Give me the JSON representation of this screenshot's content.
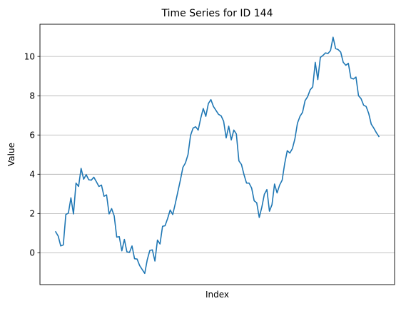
{
  "chart_data": {
    "type": "line",
    "title": "Time Series for ID 144",
    "xlabel": "Index",
    "ylabel": "Value",
    "x_ticks_shown": false,
    "ylim": [
      -1.62,
      11.64
    ],
    "yticks": [
      0,
      2,
      4,
      6,
      8,
      10
    ],
    "ytick_labels": [
      "0",
      "2",
      "4",
      "6",
      "8",
      "10"
    ],
    "grid": "y",
    "line_color": "#1f77b4",
    "grid_color": "#b0b0b0",
    "series": [
      {
        "values": [
          1.07,
          0.85,
          0.35,
          0.4,
          1.95,
          2.02,
          2.8,
          1.98,
          3.55,
          3.38,
          4.3,
          3.75,
          3.98,
          3.72,
          3.7,
          3.85,
          3.62,
          3.38,
          3.45,
          2.88,
          2.95,
          1.98,
          2.25,
          1.88,
          0.8,
          0.82,
          0.1,
          0.68,
          0.05,
          0.02,
          0.35,
          -0.3,
          -0.32,
          -0.65,
          -0.85,
          -1.05,
          -0.35,
          0.12,
          0.15,
          -0.42,
          0.65,
          0.45,
          1.35,
          1.38,
          1.75,
          2.18,
          1.95,
          2.5,
          3.1,
          3.7,
          4.35,
          4.58,
          5.0,
          5.98,
          6.35,
          6.42,
          6.25,
          6.85,
          7.35,
          6.95,
          7.6,
          7.8,
          7.45,
          7.25,
          7.05,
          6.98,
          6.7,
          5.85,
          6.45,
          5.75,
          6.25,
          6.05,
          4.68,
          4.5,
          3.98,
          3.55,
          3.55,
          3.3,
          2.65,
          2.55,
          1.8,
          2.32,
          2.98,
          3.22,
          2.12,
          2.45,
          3.5,
          3.05,
          3.45,
          3.7,
          4.55,
          5.2,
          5.08,
          5.3,
          5.8,
          6.6,
          6.95,
          7.15,
          7.75,
          7.95,
          8.3,
          8.45,
          9.7,
          8.82,
          9.95,
          10.05,
          10.18,
          10.15,
          10.3,
          10.98,
          10.4,
          10.35,
          10.22,
          9.7,
          9.55,
          9.65,
          8.9,
          8.85,
          8.95,
          8.0,
          7.85,
          7.52,
          7.45,
          7.1,
          6.55,
          6.35,
          6.12,
          5.92
        ]
      }
    ]
  }
}
